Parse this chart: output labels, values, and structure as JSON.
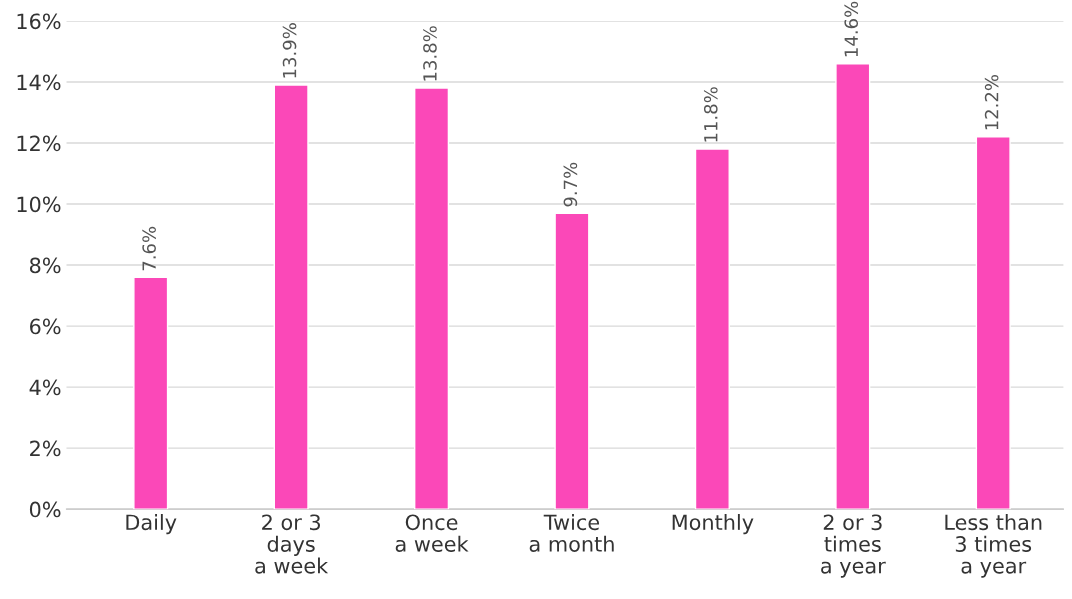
{
  "chart_data": {
    "type": "bar",
    "categories": [
      "Daily",
      "2 or 3\ndays\na week",
      "Once\na week",
      "Twice\na month",
      "Monthly",
      "2 or 3\ntimes\na year",
      "Less than\n3 times\na year"
    ],
    "values": [
      7.6,
      13.9,
      13.8,
      9.7,
      11.8,
      14.6,
      12.2
    ],
    "value_labels": [
      "7.6%",
      "13.9%",
      "13.8%",
      "9.7%",
      "11.8%",
      "14.6%",
      "12.2%"
    ],
    "color": "#fb48b8",
    "ylim": [
      0,
      16
    ],
    "yticks": [
      {
        "value": 0,
        "label": "0%"
      },
      {
        "value": 2,
        "label": "2%"
      },
      {
        "value": 4,
        "label": "4%"
      },
      {
        "value": 6,
        "label": "6%"
      },
      {
        "value": 8,
        "label": "8%"
      },
      {
        "value": 10,
        "label": "10%"
      },
      {
        "value": 12,
        "label": "12%"
      },
      {
        "value": 14,
        "label": "14%"
      },
      {
        "value": 16,
        "label": "16%"
      }
    ],
    "grid": "y",
    "legend": false
  }
}
